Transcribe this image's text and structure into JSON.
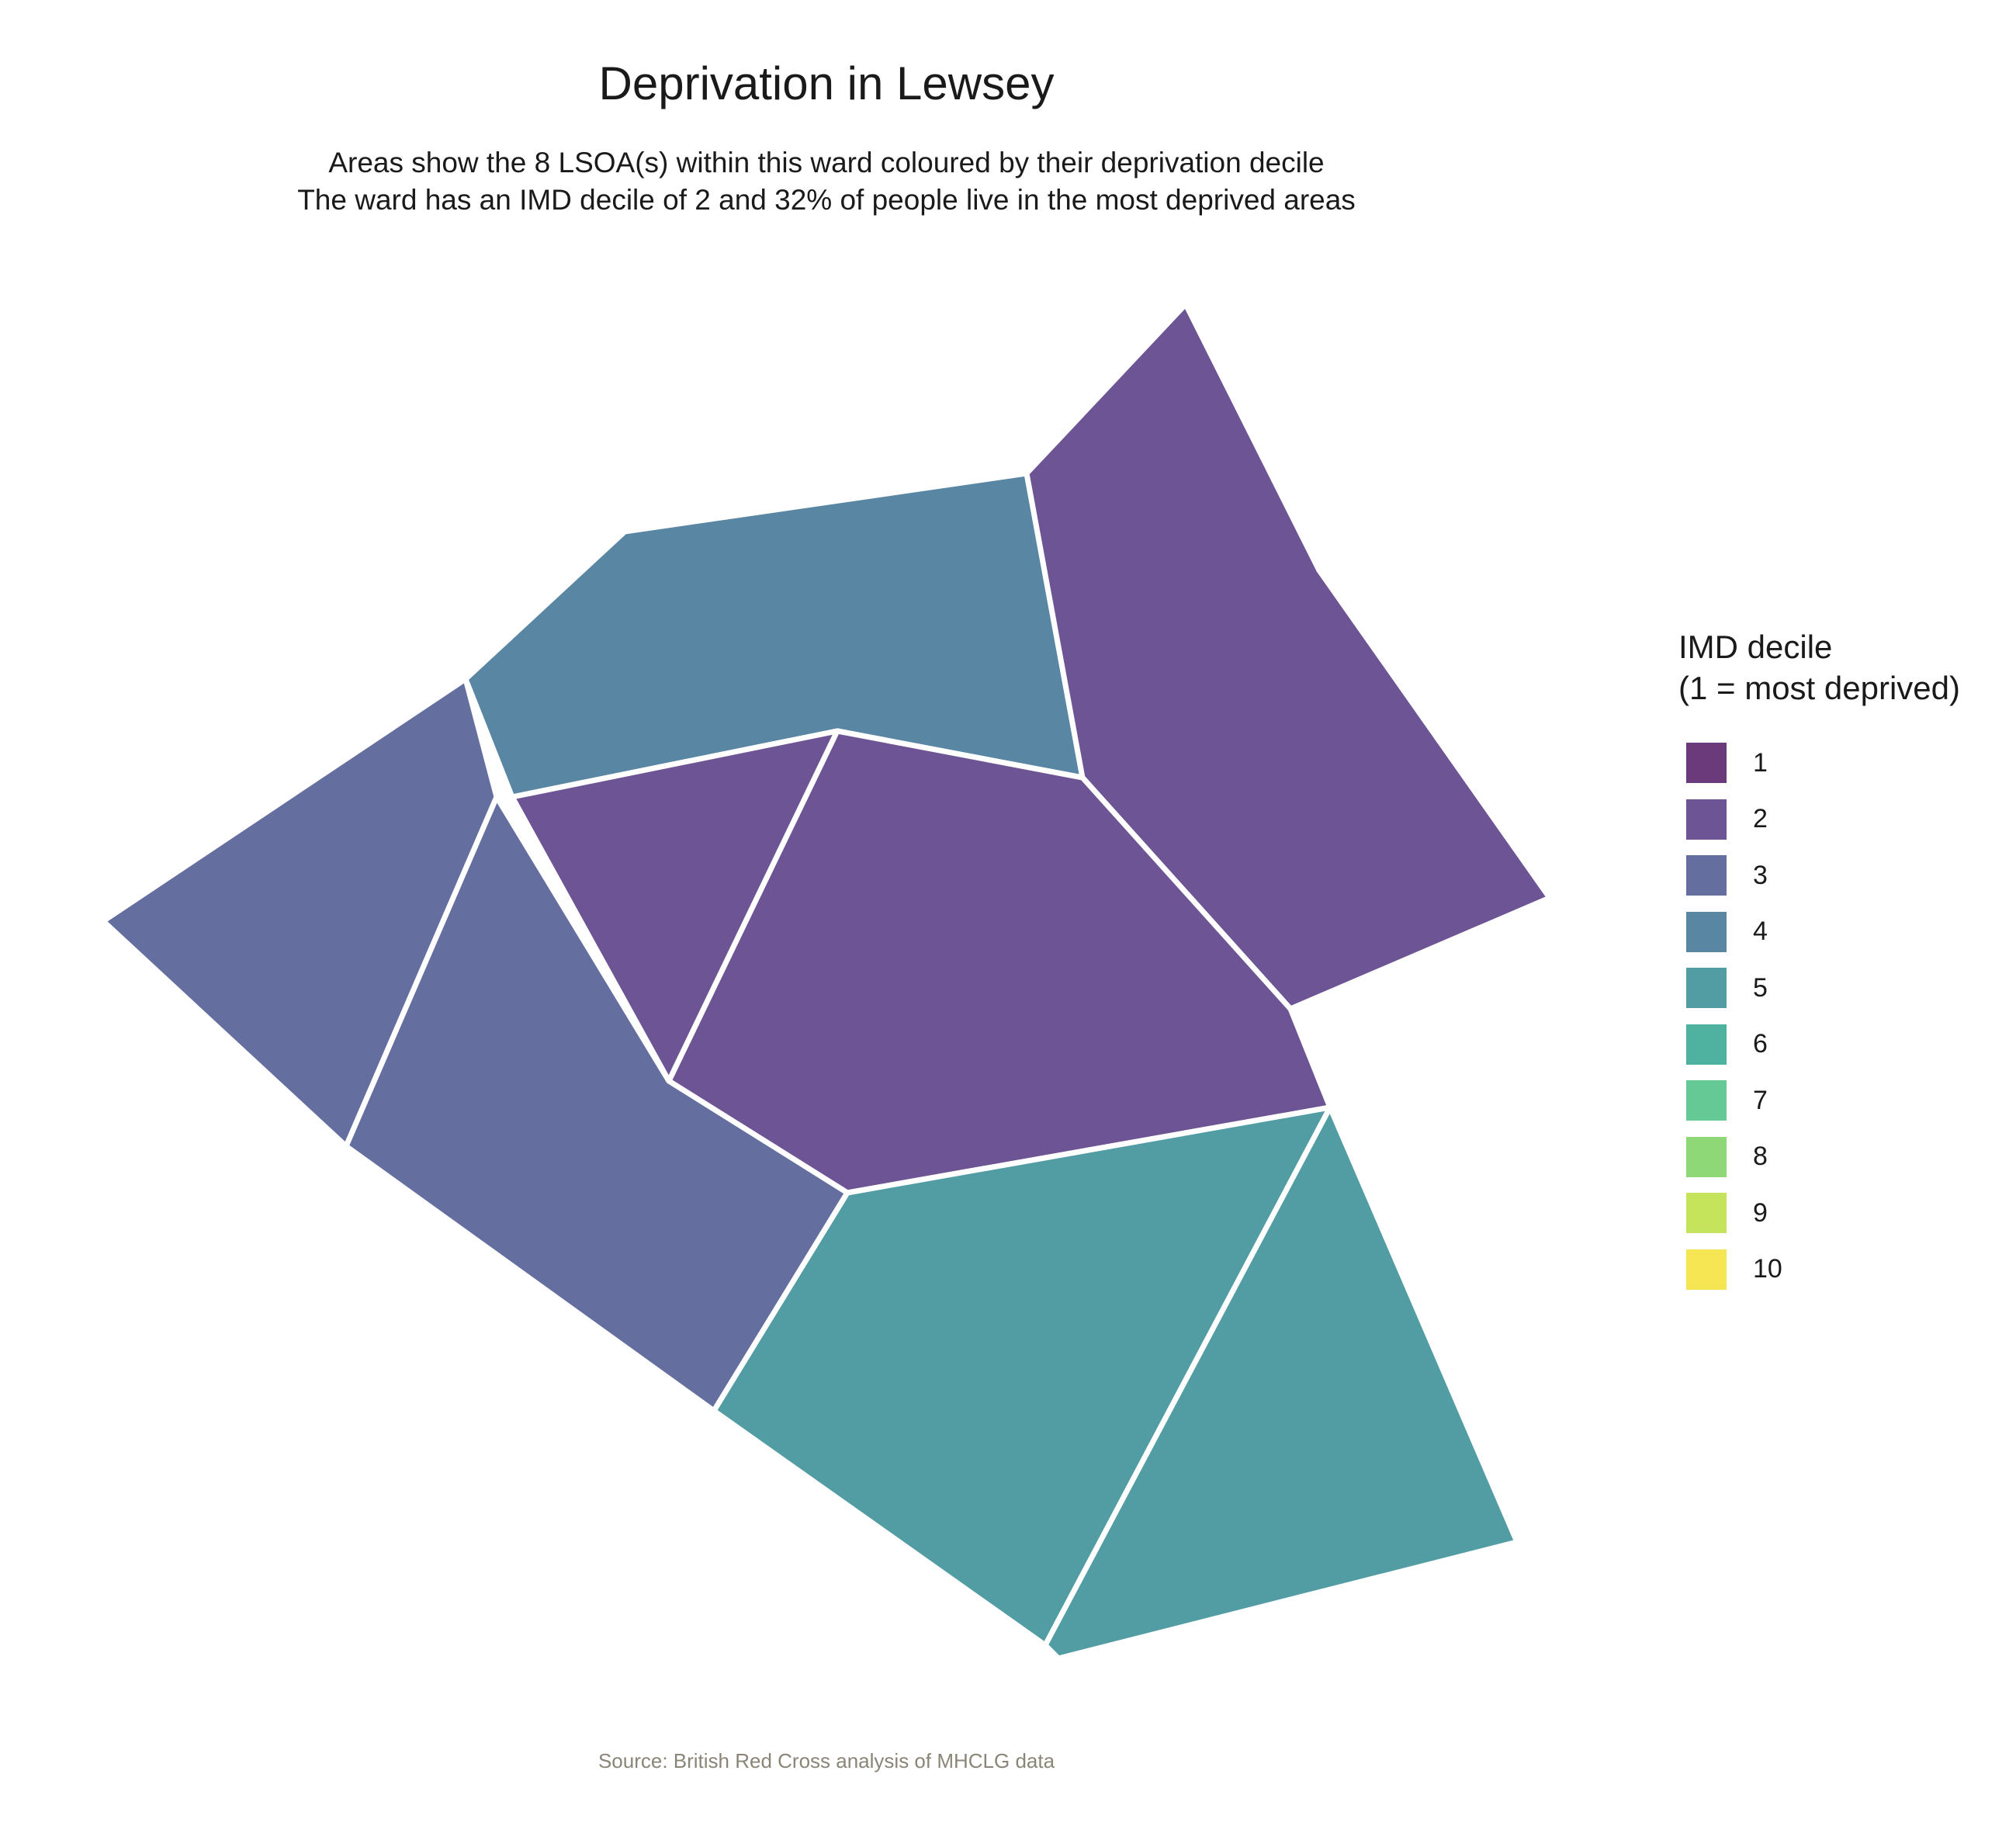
{
  "title": "Deprivation in Lewsey",
  "subtitle": {
    "line1": "Areas show the 8 LSOA(s) within this ward coloured by their deprivation decile",
    "line2": "The ward has an IMD decile of 2 and 32% of people live in the most deprived areas"
  },
  "legend": {
    "title_line1": "IMD decile",
    "title_line2": "(1 = most deprived)",
    "items": [
      {
        "label": "1",
        "color": "#6a3a7a"
      },
      {
        "label": "2",
        "color": "#6d5494"
      },
      {
        "label": "3",
        "color": "#646f9f"
      },
      {
        "label": "4",
        "color": "#5987a3"
      },
      {
        "label": "5",
        "color": "#529da4"
      },
      {
        "label": "6",
        "color": "#4fb2a0"
      },
      {
        "label": "7",
        "color": "#64c994"
      },
      {
        "label": "8",
        "color": "#8fd877"
      },
      {
        "label": "9",
        "color": "#c6e35c"
      },
      {
        "label": "10",
        "color": "#f7e654"
      }
    ]
  },
  "areas": [
    {
      "name": "lsoa-west",
      "decile": 3
    },
    {
      "name": "lsoa-north",
      "decile": 4
    },
    {
      "name": "lsoa-northeast",
      "decile": 2
    },
    {
      "name": "lsoa-center-small",
      "decile": 2
    },
    {
      "name": "lsoa-center",
      "decile": 2
    },
    {
      "name": "lsoa-southwest",
      "decile": 3
    },
    {
      "name": "lsoa-south",
      "decile": 5
    },
    {
      "name": "lsoa-southeast",
      "decile": 5
    }
  ],
  "source": "Source: British Red Cross analysis of MHCLG data"
}
